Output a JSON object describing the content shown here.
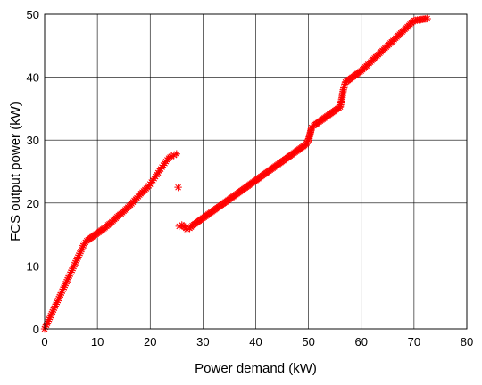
{
  "chart_data": {
    "type": "scatter",
    "title": "",
    "xlabel": "Power demand (kW)",
    "ylabel": "FCS output power (kW)",
    "xlim": [
      0,
      80
    ],
    "ylim": [
      0,
      50
    ],
    "x_ticks": [
      "0",
      "10",
      "20",
      "30",
      "40",
      "50",
      "60",
      "70",
      "80"
    ],
    "y_ticks": [
      "0",
      "10",
      "20",
      "30",
      "40",
      "50"
    ],
    "grid": true,
    "marker": "asterisk",
    "series": [
      {
        "color": "#ff0000",
        "points": [
          [
            0,
            0
          ],
          [
            0.5,
            0.9
          ],
          [
            1,
            1.8
          ],
          [
            1.5,
            2.7
          ],
          [
            2,
            3.6
          ],
          [
            2.5,
            4.5
          ],
          [
            3,
            5.4
          ],
          [
            3.5,
            6.3
          ],
          [
            4,
            7.2
          ],
          [
            4.5,
            8.1
          ],
          [
            5,
            9.0
          ],
          [
            5.5,
            9.9
          ],
          [
            6,
            10.8
          ],
          [
            6.5,
            11.7
          ],
          [
            7,
            12.6
          ],
          [
            7.5,
            13.5
          ],
          [
            8,
            14.0
          ],
          [
            8.5,
            14.3
          ],
          [
            9,
            14.6
          ],
          [
            9.5,
            14.9
          ],
          [
            10,
            15.2
          ],
          [
            10.5,
            15.5
          ],
          [
            11,
            15.8
          ],
          [
            11.5,
            16.1
          ],
          [
            12,
            16.5
          ],
          [
            12.5,
            16.8
          ],
          [
            13,
            17.2
          ],
          [
            13.5,
            17.6
          ],
          [
            14,
            18.0
          ],
          [
            14.5,
            18.3
          ],
          [
            15,
            18.7
          ],
          [
            15.5,
            19.1
          ],
          [
            16,
            19.5
          ],
          [
            16.5,
            19.9
          ],
          [
            17,
            20.4
          ],
          [
            17.5,
            20.8
          ],
          [
            18,
            21.3
          ],
          [
            18.5,
            21.7
          ],
          [
            19,
            22.1
          ],
          [
            19.5,
            22.5
          ],
          [
            20,
            23.0
          ],
          [
            20.5,
            23.6
          ],
          [
            21,
            24.2
          ],
          [
            21.5,
            24.8
          ],
          [
            22,
            25.4
          ],
          [
            22.5,
            26.0
          ],
          [
            23,
            26.6
          ],
          [
            23.5,
            27.1
          ],
          [
            24,
            27.4
          ],
          [
            24.5,
            27.6
          ],
          [
            25,
            27.8
          ],
          [
            25.3,
            22.5
          ],
          [
            25.5,
            16.3
          ],
          [
            26,
            16.5
          ],
          [
            26.5,
            16.2
          ],
          [
            27,
            15.8
          ],
          [
            27.5,
            16.0
          ],
          [
            28,
            16.4
          ],
          [
            28.5,
            16.7
          ],
          [
            29,
            17.0
          ],
          [
            29.5,
            17.3
          ],
          [
            30,
            17.6
          ],
          [
            30.5,
            17.9
          ],
          [
            31,
            18.2
          ],
          [
            31.5,
            18.5
          ],
          [
            32,
            18.8
          ],
          [
            32.5,
            19.1
          ],
          [
            33,
            19.4
          ],
          [
            33.5,
            19.7
          ],
          [
            34,
            20.0
          ],
          [
            34.5,
            20.3
          ],
          [
            35,
            20.6
          ],
          [
            35.5,
            20.9
          ],
          [
            36,
            21.2
          ],
          [
            36.5,
            21.5
          ],
          [
            37,
            21.8
          ],
          [
            37.5,
            22.1
          ],
          [
            38,
            22.4
          ],
          [
            38.5,
            22.7
          ],
          [
            39,
            23.0
          ],
          [
            39.5,
            23.3
          ],
          [
            40,
            23.6
          ],
          [
            40.5,
            23.9
          ],
          [
            41,
            24.2
          ],
          [
            41.5,
            24.5
          ],
          [
            42,
            24.8
          ],
          [
            42.5,
            25.1
          ],
          [
            43,
            25.4
          ],
          [
            43.5,
            25.7
          ],
          [
            44,
            26.0
          ],
          [
            44.5,
            26.3
          ],
          [
            45,
            26.6
          ],
          [
            45.5,
            26.9
          ],
          [
            46,
            27.2
          ],
          [
            46.5,
            27.5
          ],
          [
            47,
            27.8
          ],
          [
            47.5,
            28.1
          ],
          [
            48,
            28.4
          ],
          [
            48.5,
            28.7
          ],
          [
            49,
            29.0
          ],
          [
            49.5,
            29.3
          ],
          [
            50,
            30.0
          ],
          [
            50.3,
            31.0
          ],
          [
            50.6,
            32.0
          ],
          [
            51,
            32.3
          ],
          [
            51.5,
            32.6
          ],
          [
            52,
            32.9
          ],
          [
            52.5,
            33.2
          ],
          [
            53,
            33.5
          ],
          [
            53.5,
            33.8
          ],
          [
            54,
            34.1
          ],
          [
            54.5,
            34.4
          ],
          [
            55,
            34.7
          ],
          [
            55.5,
            35.0
          ],
          [
            56,
            35.3
          ],
          [
            56.3,
            36.5
          ],
          [
            56.6,
            38.0
          ],
          [
            57,
            39.2
          ],
          [
            57.5,
            39.5
          ],
          [
            58,
            39.8
          ],
          [
            58.5,
            40.1
          ],
          [
            59,
            40.4
          ],
          [
            59.5,
            40.7
          ],
          [
            60,
            41.0
          ],
          [
            60.5,
            41.4
          ],
          [
            61,
            41.8
          ],
          [
            61.5,
            42.2
          ],
          [
            62,
            42.6
          ],
          [
            62.5,
            43.0
          ],
          [
            63,
            43.4
          ],
          [
            63.5,
            43.8
          ],
          [
            64,
            44.2
          ],
          [
            64.5,
            44.6
          ],
          [
            65,
            45.0
          ],
          [
            65.5,
            45.4
          ],
          [
            66,
            45.8
          ],
          [
            66.5,
            46.2
          ],
          [
            67,
            46.6
          ],
          [
            67.5,
            47.0
          ],
          [
            68,
            47.4
          ],
          [
            68.5,
            47.8
          ],
          [
            69,
            48.2
          ],
          [
            69.5,
            48.6
          ],
          [
            70,
            49.0
          ],
          [
            72.5,
            49.3
          ]
        ]
      }
    ]
  }
}
